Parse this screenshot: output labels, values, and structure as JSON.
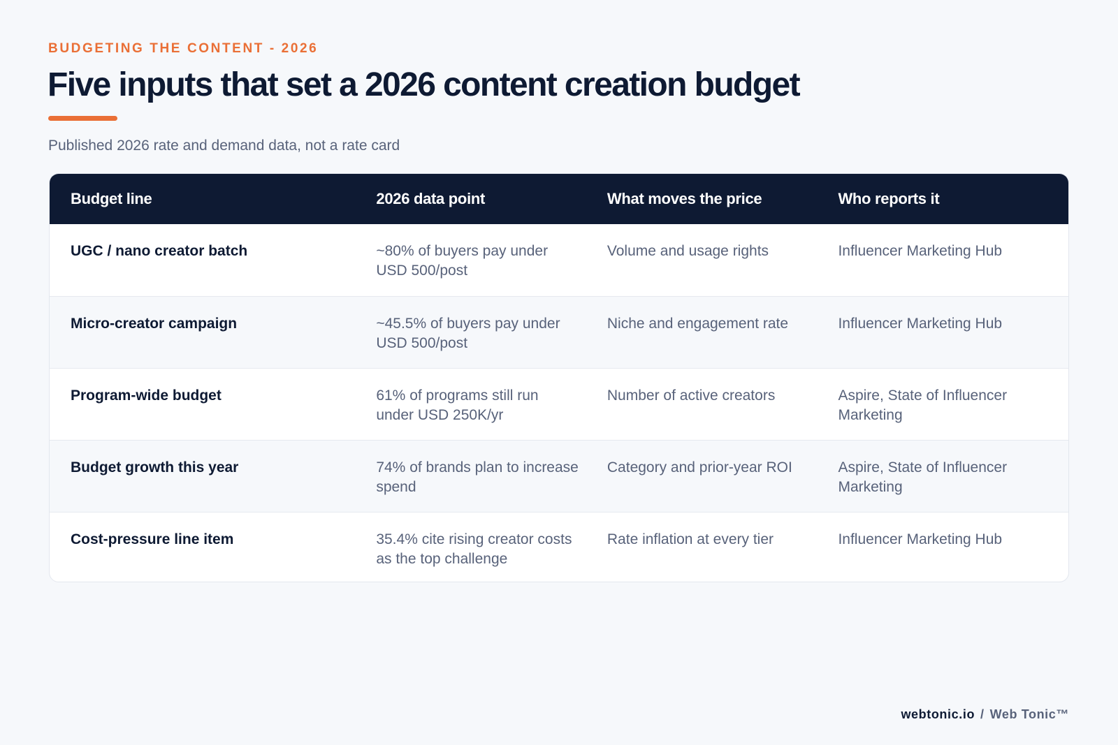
{
  "header": {
    "eyebrow": "BUDGETING THE CONTENT - 2026",
    "title": "Five inputs that set a 2026 content creation budget",
    "subtitle": "Published 2026 rate and demand data, not a rate card",
    "accent_color": "#ea6f36"
  },
  "table": {
    "headers": [
      "Budget line",
      "2026 data point",
      "What moves the price",
      "Who reports it"
    ],
    "header_bg": "#0e1a33",
    "rows": [
      {
        "line": "UGC / nano creator batch",
        "data_point": "~80% of buyers pay under USD 500/post",
        "price_driver": "Volume and usage rights",
        "source": "Influencer Marketing Hub"
      },
      {
        "line": "Micro-creator campaign",
        "data_point": "~45.5% of buyers pay under USD 500/post",
        "price_driver": "Niche and engagement rate",
        "source": "Influencer Marketing Hub"
      },
      {
        "line": "Program-wide budget",
        "data_point": "61% of programs still run under USD 250K/yr",
        "price_driver": "Number of active creators",
        "source": "Aspire, State of Influencer Marketing"
      },
      {
        "line": "Budget growth this year",
        "data_point": "74% of brands plan to increase spend",
        "price_driver": "Category and prior-year ROI",
        "source": "Aspire, State of Influencer Marketing"
      },
      {
        "line": "Cost-pressure line item",
        "data_point": "35.4% cite rising creator costs as the top challenge",
        "price_driver": "Rate inflation at every tier",
        "source": "Influencer Marketing Hub"
      }
    ]
  },
  "footer": {
    "site": "webtonic.io",
    "separator": "/",
    "brand": "Web Tonic™"
  }
}
